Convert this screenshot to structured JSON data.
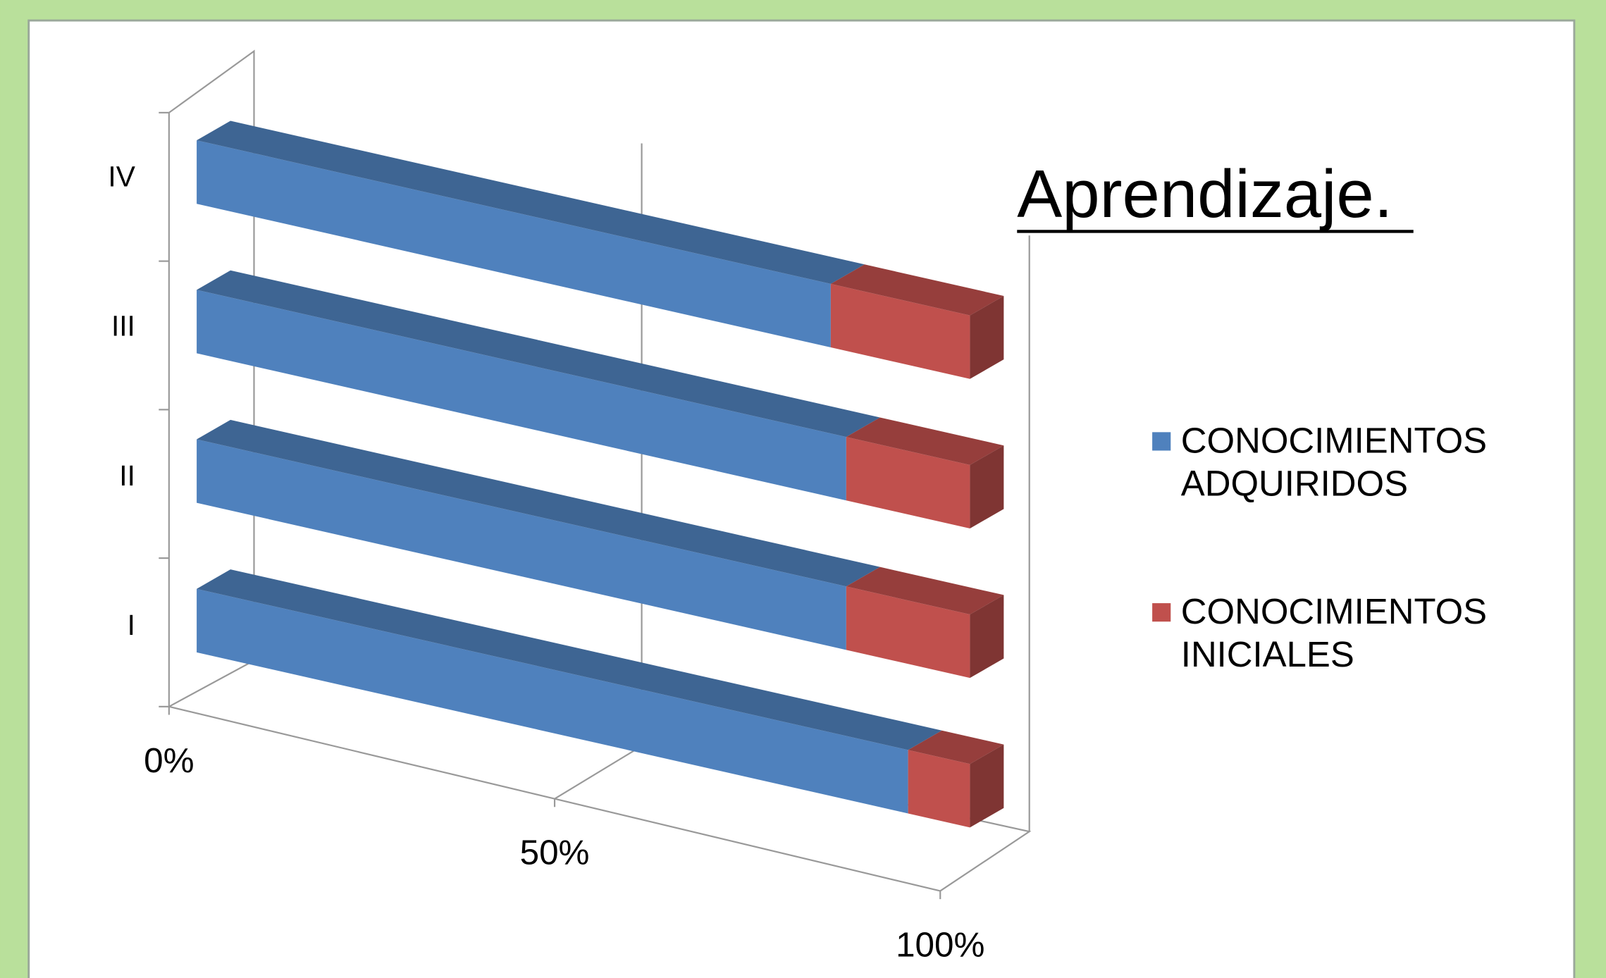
{
  "chart_data": {
    "type": "bar3d_stacked_horizontal",
    "title": "Aprendizaje.",
    "categories": [
      "I",
      "II",
      "III",
      "IV"
    ],
    "series": [
      {
        "name": "CONOCIMIENTOS ADQUIRIDOS",
        "color": "#4f81bd",
        "values": [
          92,
          84,
          84,
          82
        ]
      },
      {
        "name": "CONOCIMIENTOS INICIALES",
        "color": "#c0504d",
        "values": [
          8,
          16,
          16,
          18
        ]
      }
    ],
    "xlim": [
      0,
      100
    ],
    "xticks": [
      {
        "value": 0,
        "label": "0%"
      },
      {
        "value": 50,
        "label": "50%"
      },
      {
        "value": 100,
        "label": "100%"
      }
    ],
    "grid": true,
    "legend": "right"
  }
}
